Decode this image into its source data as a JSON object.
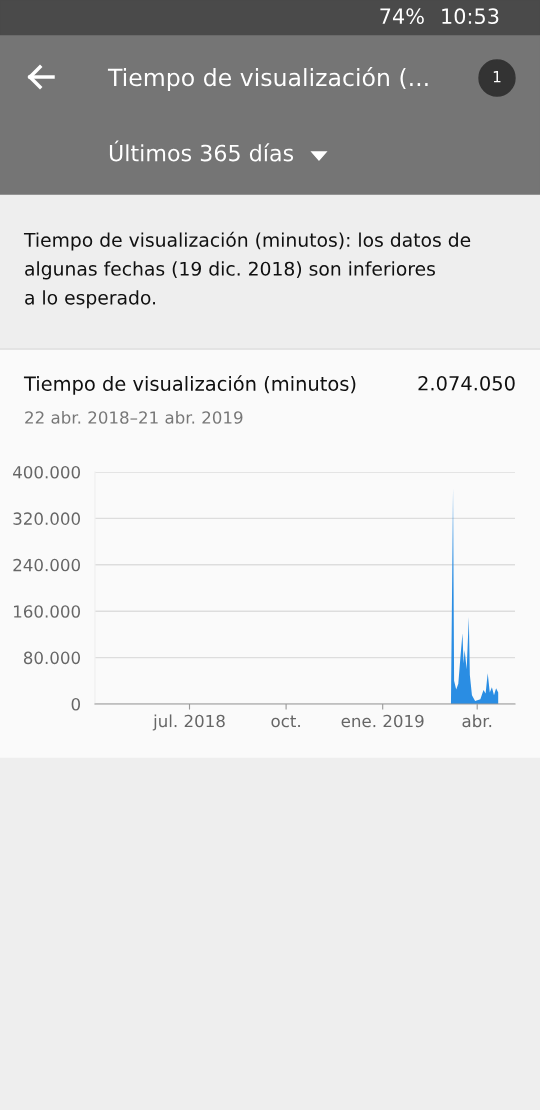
{
  "chart_data": {
    "type": "area",
    "title": "Tiempo de visualización (minutos)",
    "subtitle": "22 abr. 2018–21 abr. 2019",
    "annotations": [
      "10:53",
      "74%",
      "Tiempo de visualización (...",
      "1",
      "Últimos 365 días",
      "Tiempo de visualización (minutos): los datos de\nalgunas fechas (19 dic. 2018) son inferiores\na lo esperado.",
      "2.074.050"
    ],
    "x": [
      "2018-04-22",
      "2019-03-07",
      "2019-03-09",
      "2019-03-10",
      "2019-03-12",
      "2019-03-14",
      "2019-03-16",
      "2019-03-18",
      "2019-03-19",
      "2019-03-20",
      "2019-03-22",
      "2019-03-24",
      "2019-03-25",
      "2019-03-27",
      "2019-03-30",
      "2019-04-04",
      "2019-04-07",
      "2019-04-09",
      "2019-04-11",
      "2019-04-13",
      "2019-04-15",
      "2019-04-17",
      "2019-04-19",
      "2019-04-21"
    ],
    "series": [
      {
        "color": "#2a8de3",
        "values": [
          0,
          0,
          372000,
          40000,
          25000,
          35000,
          80000,
          122000,
          70000,
          93000,
          60000,
          150000,
          50000,
          15000,
          5000,
          8000,
          24000,
          18000,
          53000,
          20000,
          29000,
          15000,
          27000,
          20000
        ]
      }
    ],
    "xlim": [
      "2018-04-02",
      "2019-05-07"
    ],
    "xticks": [
      {
        "value": "2018-07-01",
        "label": "jul. 2018"
      },
      {
        "value": "2018-10-01",
        "label": "oct."
      },
      {
        "value": "2019-01-01",
        "label": "ene. 2019"
      },
      {
        "value": "2019-04-01",
        "label": "abr."
      }
    ],
    "ylim": [
      0,
      400000
    ],
    "yticks": [
      0,
      {
        "value": 80000,
        "label": "80.000"
      },
      {
        "value": 160000,
        "label": "160.000"
      },
      {
        "value": 240000,
        "label": "240.000"
      },
      {
        "value": 320000,
        "label": "320.000"
      },
      {
        "value": 400000,
        "label": "400.000"
      }
    ],
    "grid": "y",
    "legend": false
  }
}
